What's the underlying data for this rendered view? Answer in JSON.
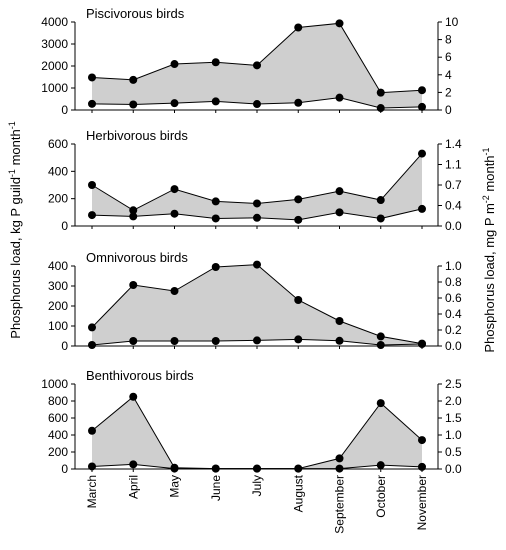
{
  "ylabels": {
    "left_main": "Phosphorus load, kg P guild",
    "left_sup": "-1",
    "left_tail": " month",
    "left_sup2": "-1",
    "right_main": "Phosphorus load, mg P m",
    "right_sup": "-2",
    "right_tail": " month",
    "right_sup2": "-1"
  },
  "chart_data": [
    {
      "type": "area",
      "title": "Piscivorous birds",
      "categories": [
        "March",
        "April",
        "May",
        "June",
        "July",
        "August",
        "September",
        "October",
        "November"
      ],
      "ylim_left": [
        0,
        4000
      ],
      "ticks_left": [
        0,
        1000,
        2000,
        3000,
        4000
      ],
      "ylim_right": [
        0,
        10
      ],
      "ticks_right": [
        0,
        2,
        4,
        6,
        8,
        10
      ],
      "series": [
        {
          "values": [
            1480,
            1370,
            2090,
            2170,
            2030,
            3750,
            3940,
            790,
            900
          ]
        },
        {
          "values": [
            280,
            250,
            310,
            390,
            270,
            330,
            560,
            90,
            140
          ]
        }
      ]
    },
    {
      "type": "area",
      "title": "Herbivorous birds",
      "categories": [
        "March",
        "April",
        "May",
        "June",
        "July",
        "August",
        "September",
        "October",
        "November"
      ],
      "ylim_left": [
        0,
        600
      ],
      "ticks_left": [
        0,
        200,
        400,
        600
      ],
      "ylim_right": [
        0,
        1.4
      ],
      "ticks_right": [
        "0.0",
        "0.4",
        "0.7",
        "1.1",
        "1.4"
      ],
      "ticks_right_values": [
        0,
        0.35,
        0.7,
        1.05,
        1.4
      ],
      "series": [
        {
          "values": [
            300,
            115,
            270,
            180,
            165,
            195,
            255,
            190,
            530
          ]
        },
        {
          "values": [
            80,
            70,
            90,
            55,
            60,
            45,
            100,
            55,
            125
          ]
        }
      ]
    },
    {
      "type": "area",
      "title": "Omnivorous birds",
      "categories": [
        "March",
        "April",
        "May",
        "June",
        "July",
        "August",
        "September",
        "October",
        "November"
      ],
      "ylim_left": [
        0,
        400
      ],
      "ticks_left": [
        0,
        100,
        200,
        300,
        400
      ],
      "ylim_right": [
        0,
        1.0
      ],
      "ticks_right": [
        "0.0",
        "0.2",
        "0.4",
        "0.6",
        "0.8",
        "1.0"
      ],
      "ticks_right_values": [
        0,
        0.2,
        0.4,
        0.6,
        0.8,
        1.0
      ],
      "series": [
        {
          "values": [
            93,
            305,
            275,
            395,
            407,
            230,
            125,
            48,
            12
          ]
        },
        {
          "values": [
            5,
            25,
            25,
            25,
            28,
            33,
            26,
            5,
            10
          ]
        }
      ]
    },
    {
      "type": "area",
      "title": "Benthivorous birds",
      "categories": [
        "March",
        "April",
        "May",
        "June",
        "July",
        "August",
        "September",
        "October",
        "November"
      ],
      "ylim_left": [
        0,
        1000
      ],
      "ticks_left": [
        0,
        200,
        400,
        600,
        800,
        1000
      ],
      "ylim_right": [
        0,
        2.5
      ],
      "ticks_right": [
        "0.0",
        "0.5",
        "1.0",
        "1.5",
        "2.0",
        "2.5"
      ],
      "ticks_right_values": [
        0,
        0.5,
        1.0,
        1.5,
        2.0,
        2.5
      ],
      "series": [
        {
          "values": [
            450,
            850,
            15,
            5,
            5,
            5,
            125,
            775,
            340
          ]
        },
        {
          "values": [
            30,
            55,
            5,
            5,
            5,
            5,
            5,
            45,
            25
          ]
        }
      ]
    }
  ]
}
